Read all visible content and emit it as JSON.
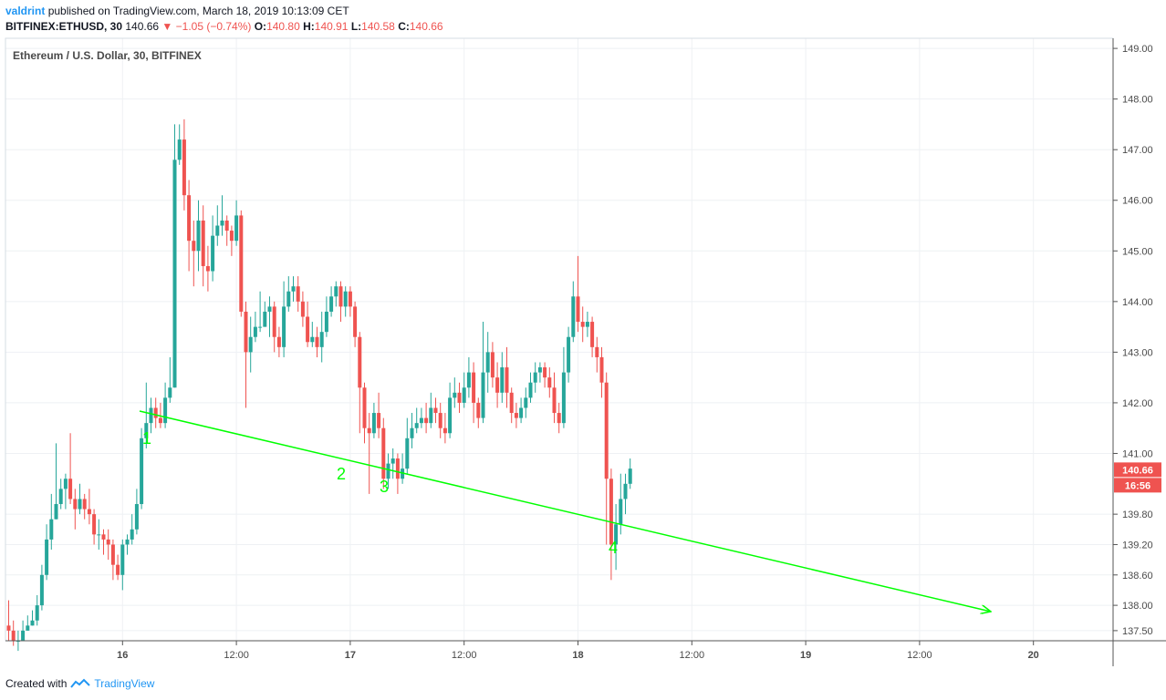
{
  "header": {
    "author": "valdrint",
    "published_text": "published on TradingView.com, March 18, 2019 10:13:09 CET",
    "symbol": "BITFINEX:ETHUSD, 30",
    "last": "140.66",
    "change_arrow": "▼",
    "change": "−1.05 (−0.74%)",
    "o_label": "O:",
    "o_value": "140.80",
    "h_label": "H:",
    "h_value": "140.91",
    "l_label": "L:",
    "l_value": "140.58",
    "c_label": "C:",
    "c_value": "140.66"
  },
  "footer": {
    "created_with": "Created with",
    "brand": "TradingView"
  },
  "colors": {
    "up": "#26a69a",
    "down": "#ef5350",
    "trendline": "#00ff00",
    "grid": "#eef1f4",
    "axis_text": "#4a4a4a",
    "brand": "#2196f3"
  },
  "chart_data": {
    "type": "candlestick",
    "title": "Ethereum / U.S. Dollar, 30, BITFINEX",
    "xlabel": "",
    "ylabel": "",
    "ylim": [
      137.3,
      149.2
    ],
    "grid": true,
    "x_ticks": [
      "16",
      "12:00",
      "17",
      "12:00",
      "18",
      "12:00",
      "19",
      "12:00",
      "20"
    ],
    "x_tick_candle_index": [
      24,
      48,
      72,
      96,
      120,
      144,
      168,
      192,
      216
    ],
    "y_ticks": [
      "149.00",
      "148.00",
      "147.00",
      "146.00",
      "145.00",
      "144.00",
      "143.00",
      "142.00",
      "141.00",
      "139.80",
      "139.20",
      "138.60",
      "138.00",
      "137.50"
    ],
    "y_tick_values": [
      149.0,
      148.0,
      147.0,
      146.0,
      145.0,
      144.0,
      143.0,
      142.0,
      141.0,
      139.8,
      139.2,
      138.6,
      138.0,
      137.5
    ],
    "price_label": {
      "value": 140.66,
      "text": "140.66"
    },
    "time_label": "16:56",
    "candles": [
      [
        137.6,
        137.5,
        138.1,
        137.3
      ],
      [
        137.5,
        137.3,
        137.7,
        137.2
      ],
      [
        137.3,
        137.3,
        137.5,
        137.1
      ],
      [
        137.3,
        137.5,
        137.7,
        137.3
      ],
      [
        137.5,
        137.6,
        137.8,
        137.5
      ],
      [
        137.6,
        137.7,
        137.9,
        137.6
      ],
      [
        137.7,
        138.0,
        138.2,
        137.6
      ],
      [
        138.0,
        138.6,
        138.8,
        137.9
      ],
      [
        138.6,
        139.3,
        139.6,
        138.5
      ],
      [
        139.3,
        139.7,
        140.2,
        139.1
      ],
      [
        139.7,
        140.0,
        141.2,
        139.7
      ],
      [
        140.0,
        140.3,
        140.5,
        139.9
      ],
      [
        140.3,
        140.5,
        140.6,
        139.9
      ],
      [
        140.5,
        140.1,
        141.4,
        140.0
      ],
      [
        140.1,
        139.9,
        140.3,
        139.5
      ],
      [
        139.9,
        140.1,
        140.4,
        139.8
      ],
      [
        140.1,
        139.9,
        140.2,
        139.7
      ],
      [
        139.9,
        139.8,
        140.3,
        139.6
      ],
      [
        139.8,
        139.4,
        139.9,
        139.2
      ],
      [
        139.4,
        139.4,
        139.7,
        139.1
      ],
      [
        139.4,
        139.3,
        139.5,
        139.0
      ],
      [
        139.3,
        139.2,
        139.5,
        138.9
      ],
      [
        139.2,
        138.8,
        139.3,
        138.5
      ],
      [
        138.8,
        138.6,
        139.0,
        138.5
      ],
      [
        138.6,
        139.2,
        139.3,
        138.3
      ],
      [
        139.2,
        139.3,
        139.4,
        139.0
      ],
      [
        139.3,
        139.5,
        139.8,
        139.2
      ],
      [
        139.5,
        140.0,
        140.3,
        139.4
      ],
      [
        140.0,
        141.3,
        141.5,
        139.9
      ],
      [
        141.3,
        141.6,
        142.4,
        141.1
      ],
      [
        141.6,
        141.9,
        142.1,
        141.4
      ],
      [
        141.9,
        141.7,
        142.1,
        141.5
      ],
      [
        141.7,
        141.6,
        142.0,
        141.5
      ],
      [
        141.6,
        142.1,
        142.4,
        141.5
      ],
      [
        142.1,
        142.3,
        142.9,
        142.0
      ],
      [
        142.3,
        146.8,
        147.5,
        142.3
      ],
      [
        146.8,
        147.2,
        147.5,
        146.7
      ],
      [
        147.2,
        146.1,
        147.6,
        145.8
      ],
      [
        146.1,
        145.2,
        146.4,
        144.6
      ],
      [
        145.2,
        145.0,
        145.6,
        144.3
      ],
      [
        145.0,
        145.6,
        146.0,
        144.6
      ],
      [
        145.6,
        144.7,
        145.9,
        144.3
      ],
      [
        144.7,
        144.6,
        145.1,
        144.2
      ],
      [
        144.6,
        145.3,
        145.7,
        144.4
      ],
      [
        145.3,
        145.5,
        145.9,
        145.1
      ],
      [
        145.5,
        145.6,
        146.1,
        145.3
      ],
      [
        145.6,
        145.4,
        145.7,
        145.1
      ],
      [
        145.4,
        145.2,
        145.5,
        144.9
      ],
      [
        145.2,
        145.7,
        146.0,
        145.1
      ],
      [
        145.7,
        143.8,
        145.8,
        143.7
      ],
      [
        143.8,
        143.0,
        144.0,
        141.9
      ],
      [
        143.0,
        143.3,
        143.7,
        142.6
      ],
      [
        143.3,
        143.5,
        143.8,
        143.2
      ],
      [
        143.5,
        143.5,
        144.2,
        143.4
      ],
      [
        143.5,
        143.8,
        144.0,
        143.5
      ],
      [
        143.8,
        143.9,
        144.1,
        143.3
      ],
      [
        143.9,
        143.3,
        144.0,
        143.0
      ],
      [
        143.3,
        143.1,
        143.5,
        142.9
      ],
      [
        143.1,
        143.9,
        144.4,
        142.9
      ],
      [
        143.9,
        144.2,
        144.5,
        143.8
      ],
      [
        144.2,
        144.3,
        144.5,
        144.0
      ],
      [
        144.3,
        144.0,
        144.5,
        143.8
      ],
      [
        144.0,
        143.7,
        144.2,
        143.5
      ],
      [
        143.7,
        143.2,
        144.0,
        143.1
      ],
      [
        143.2,
        143.3,
        143.6,
        143.1
      ],
      [
        143.3,
        143.1,
        143.5,
        142.9
      ],
      [
        143.1,
        143.4,
        143.8,
        142.8
      ],
      [
        143.4,
        143.8,
        144.1,
        143.3
      ],
      [
        143.8,
        144.1,
        144.3,
        143.7
      ],
      [
        144.1,
        144.3,
        144.4,
        143.9
      ],
      [
        144.3,
        143.9,
        144.4,
        143.6
      ],
      [
        143.9,
        144.2,
        144.3,
        143.7
      ],
      [
        144.2,
        143.9,
        144.3,
        143.7
      ],
      [
        143.9,
        143.3,
        144.0,
        143.1
      ],
      [
        143.3,
        142.3,
        143.4,
        141.4
      ],
      [
        142.3,
        141.5,
        142.4,
        141.2
      ],
      [
        141.5,
        141.4,
        141.8,
        140.2
      ],
      [
        141.4,
        141.8,
        142.0,
        141.3
      ],
      [
        141.8,
        141.5,
        142.2,
        141.3
      ],
      [
        141.5,
        140.5,
        141.7,
        140.3
      ],
      [
        140.5,
        140.8,
        141.0,
        140.3
      ],
      [
        140.8,
        140.9,
        141.1,
        140.5
      ],
      [
        140.9,
        140.5,
        141.0,
        140.2
      ],
      [
        140.5,
        140.7,
        141.0,
        140.4
      ],
      [
        140.7,
        141.3,
        141.7,
        140.6
      ],
      [
        141.3,
        141.5,
        141.8,
        141.1
      ],
      [
        141.5,
        141.6,
        141.9,
        141.4
      ],
      [
        141.6,
        141.7,
        141.9,
        141.5
      ],
      [
        141.7,
        141.6,
        142.0,
        141.4
      ],
      [
        141.6,
        141.9,
        142.2,
        141.5
      ],
      [
        141.9,
        141.8,
        142.1,
        141.6
      ],
      [
        141.8,
        141.5,
        142.0,
        141.3
      ],
      [
        141.5,
        141.4,
        141.8,
        141.2
      ],
      [
        141.4,
        142.1,
        142.4,
        141.3
      ],
      [
        142.1,
        142.2,
        142.5,
        141.9
      ],
      [
        142.2,
        142.0,
        142.4,
        141.8
      ],
      [
        142.0,
        142.3,
        142.6,
        141.9
      ],
      [
        142.3,
        142.6,
        142.9,
        142.1
      ],
      [
        142.6,
        142.0,
        142.8,
        141.6
      ],
      [
        142.0,
        141.7,
        142.1,
        141.5
      ],
      [
        141.7,
        142.6,
        143.6,
        141.6
      ],
      [
        142.6,
        143.0,
        143.4,
        142.2
      ],
      [
        143.0,
        142.5,
        143.2,
        142.3
      ],
      [
        142.5,
        142.2,
        142.8,
        141.9
      ],
      [
        142.2,
        142.7,
        143.0,
        142.0
      ],
      [
        142.7,
        142.2,
        143.1,
        141.9
      ],
      [
        142.2,
        141.8,
        142.3,
        141.6
      ],
      [
        141.8,
        141.7,
        142.0,
        141.5
      ],
      [
        141.7,
        141.9,
        142.1,
        141.6
      ],
      [
        141.9,
        142.1,
        142.3,
        141.7
      ],
      [
        142.1,
        142.4,
        142.6,
        142.0
      ],
      [
        142.4,
        142.6,
        142.8,
        142.2
      ],
      [
        142.6,
        142.7,
        142.8,
        142.4
      ],
      [
        142.7,
        142.5,
        142.8,
        142.3
      ],
      [
        142.5,
        142.3,
        142.7,
        142.1
      ],
      [
        142.3,
        141.8,
        142.6,
        141.6
      ],
      [
        141.8,
        141.6,
        142.0,
        141.4
      ],
      [
        141.6,
        142.6,
        143.1,
        141.5
      ],
      [
        142.6,
        143.3,
        143.5,
        142.4
      ],
      [
        143.3,
        144.1,
        144.4,
        143.2
      ],
      [
        144.1,
        143.6,
        144.9,
        143.4
      ],
      [
        143.6,
        143.5,
        143.9,
        143.2
      ],
      [
        143.5,
        143.6,
        143.8,
        143.3
      ],
      [
        143.6,
        143.1,
        143.7,
        142.9
      ],
      [
        143.1,
        142.9,
        143.3,
        142.6
      ],
      [
        142.9,
        142.4,
        143.1,
        142.1
      ],
      [
        142.4,
        140.5,
        142.6,
        139.2
      ],
      [
        140.5,
        139.2,
        140.7,
        138.5
      ],
      [
        139.2,
        139.6,
        140.0,
        138.7
      ],
      [
        139.6,
        140.1,
        140.6,
        139.4
      ],
      [
        140.1,
        140.4,
        140.6,
        139.8
      ],
      [
        140.4,
        140.7,
        140.9,
        140.3
      ]
    ]
  }
}
